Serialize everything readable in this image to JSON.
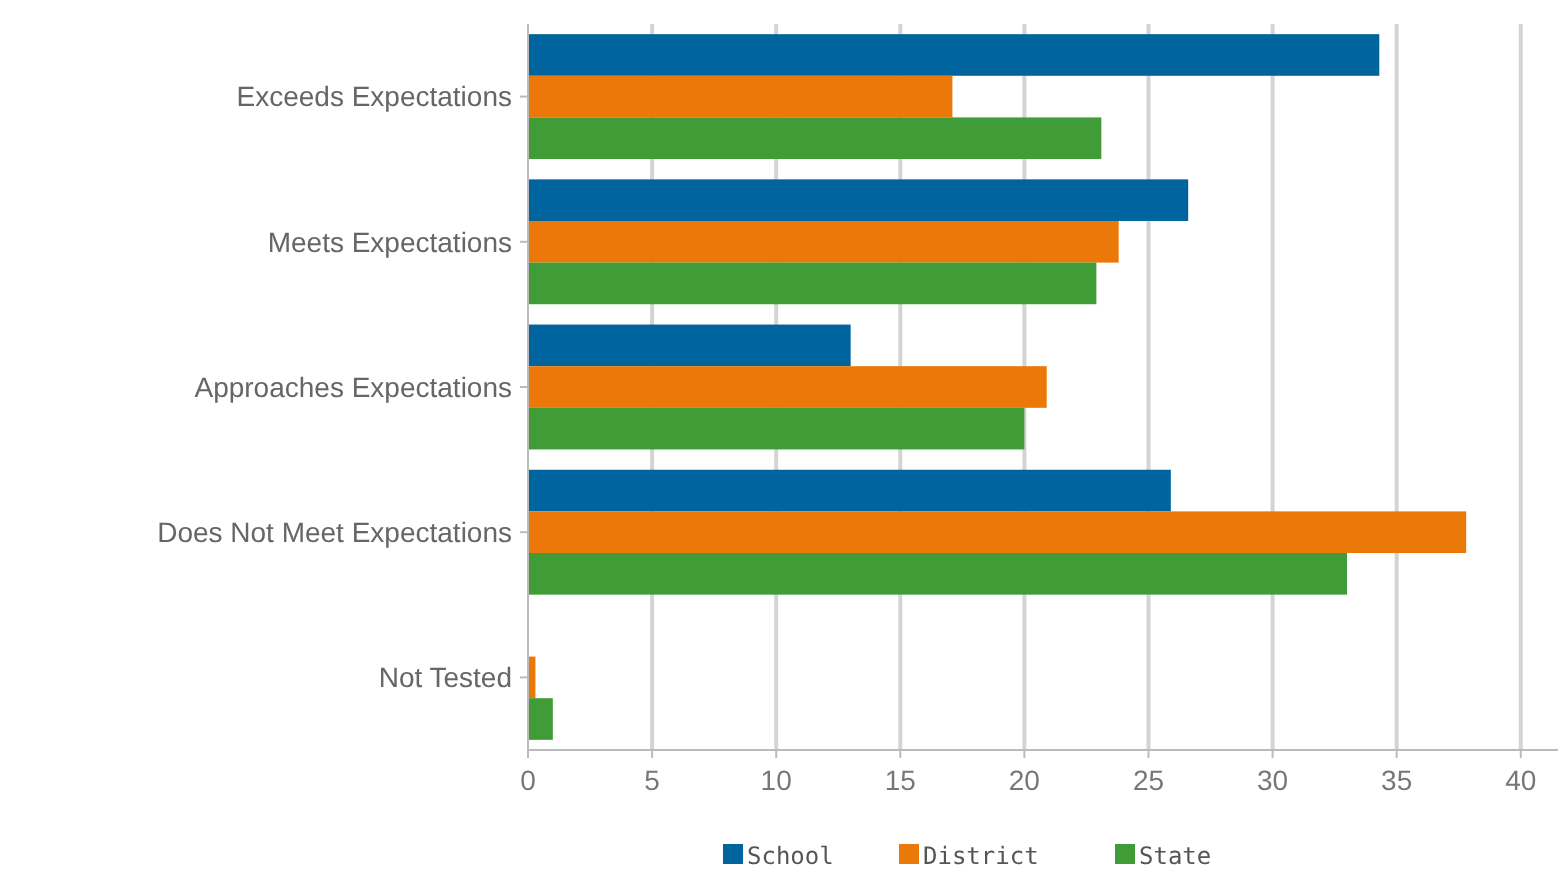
{
  "chart_data": {
    "type": "bar",
    "orientation": "horizontal",
    "categories": [
      "Exceeds Expectations",
      "Meets Expectations",
      "Approaches Expectations",
      "Does Not Meet Expectations",
      "Not Tested"
    ],
    "series": [
      {
        "name": "School",
        "color": "#00659e",
        "values": [
          34.3,
          26.6,
          13.0,
          25.9,
          0
        ]
      },
      {
        "name": "District",
        "color": "#ea7909",
        "values": [
          17.1,
          23.8,
          20.9,
          37.8,
          0.3
        ]
      },
      {
        "name": "State",
        "color": "#409c36",
        "values": [
          23.1,
          22.9,
          20.0,
          33.0,
          1.0
        ]
      }
    ],
    "xlim": [
      0,
      41.5
    ],
    "xticks": [
      0,
      5,
      10,
      15,
      20,
      25,
      30,
      35,
      40
    ],
    "grid": "x",
    "legend": "bottom"
  }
}
